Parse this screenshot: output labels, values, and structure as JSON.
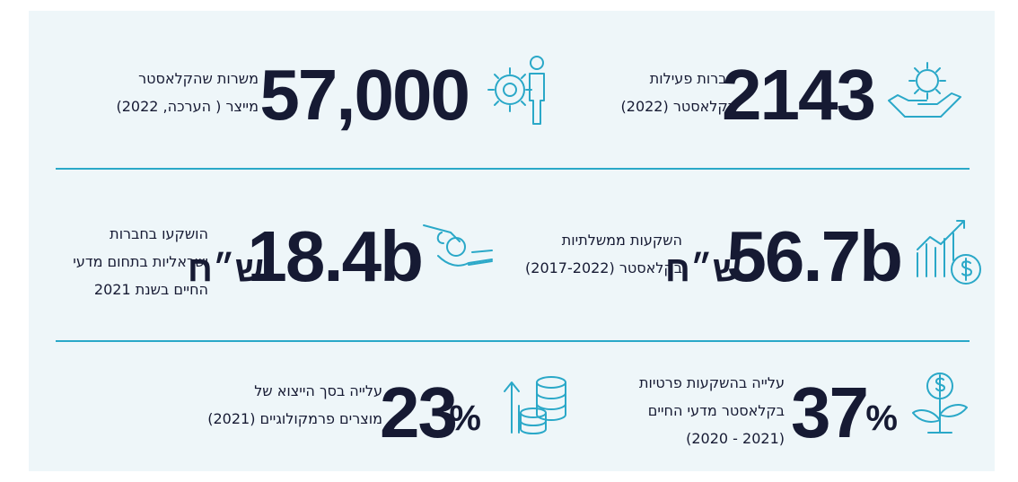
{
  "stats": [
    {
      "number": "2143",
      "lines": [
        "חברות פעילות",
        "בקלאסטר (2022)"
      ]
    },
    {
      "number": "57,000",
      "lines": [
        "משרות שהקלאסטר",
        "מייצר ( הערכה, 2022)"
      ]
    },
    {
      "number": "56.7b",
      "unit": "ש״ח",
      "lines": [
        "השקעות ממשלתיות",
        "בקלאסטר (2017-2022)"
      ]
    },
    {
      "number": "18.4b",
      "unit": "ש״ח",
      "lines": [
        "הושקעו בחברות",
        "ישראליות בתחום מדעי",
        "החיים בשנת 2021"
      ]
    },
    {
      "number": "37",
      "unit": "%",
      "lines": [
        "עלייה בהשקעות פרטיות",
        "בקלאסטר מדעי החיים",
        "(2021 - 2020)"
      ]
    },
    {
      "number": "23",
      "unit": "%",
      "lines": [
        "עלייה בסך הייצוא של",
        "מוצרים פרמקולוגיים (2021)"
      ]
    }
  ]
}
